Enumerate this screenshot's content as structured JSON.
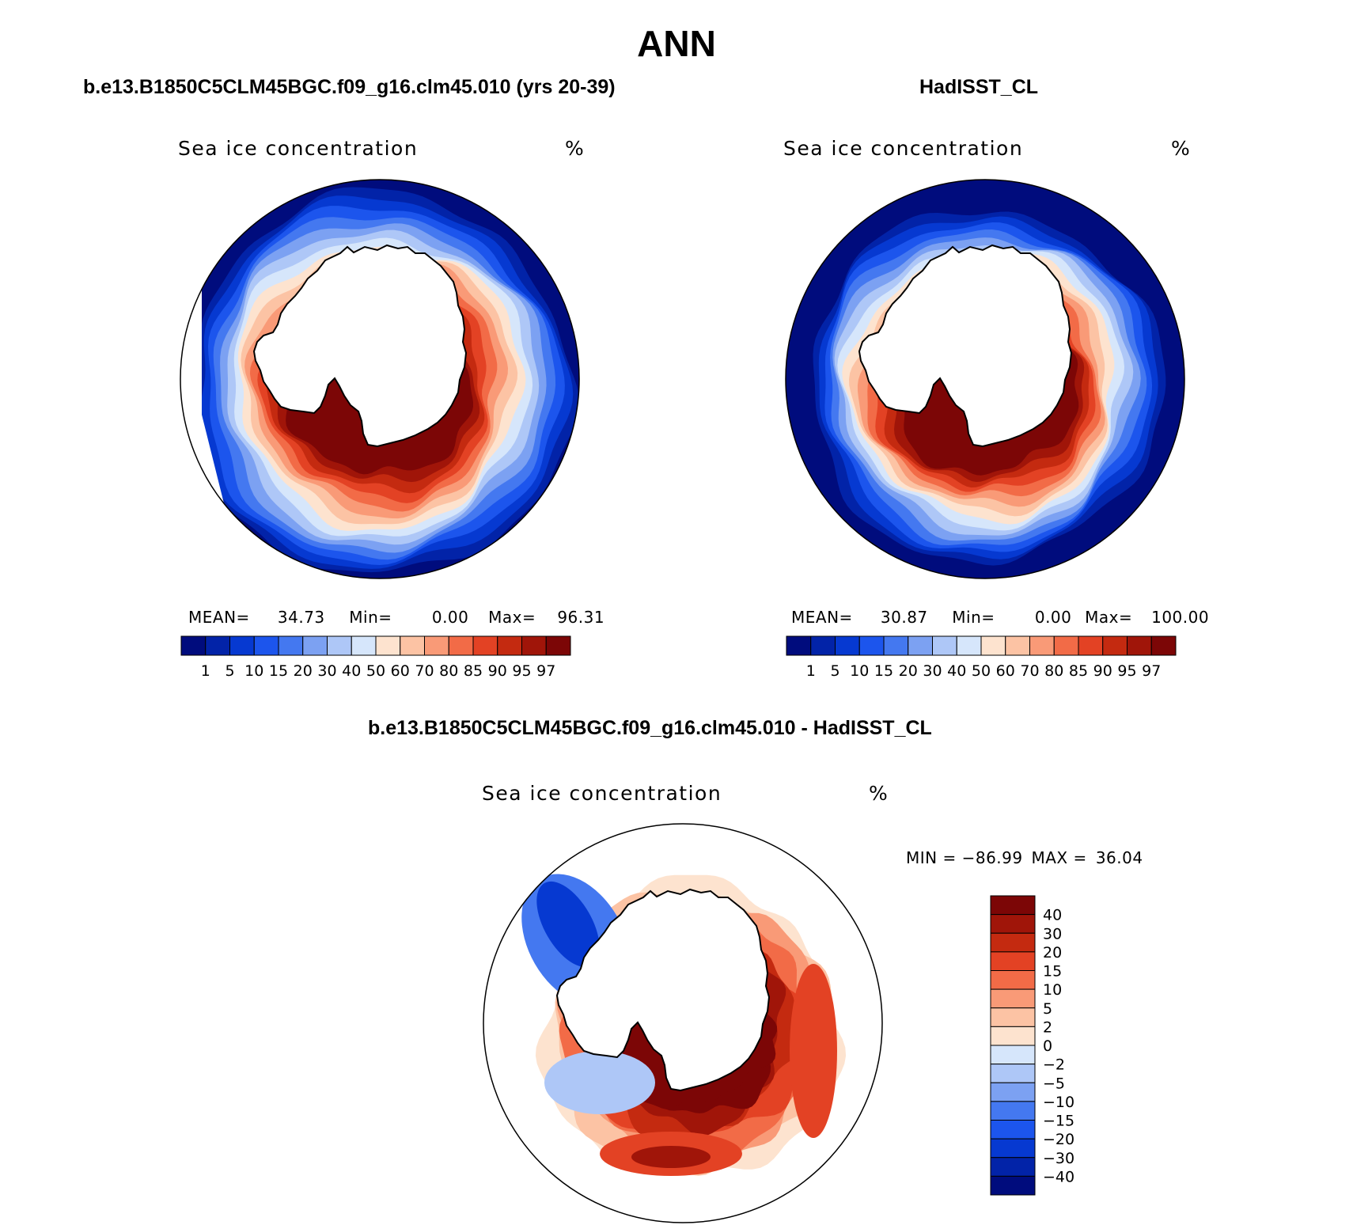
{
  "figure": {
    "title": "ANN"
  },
  "chart_data": [
    {
      "type": "heatmap",
      "panel": "left",
      "case_title": "b.e13.B1850C5CLM45BGC.f09_g16.clm45.010 (yrs 20-39)",
      "variable": "Sea ice concentration",
      "units": "%",
      "stats": {
        "mean_label": "MEAN=",
        "mean": "34.73",
        "min_label": "Min=",
        "min": "0.00",
        "max_label": "Max=",
        "max": "96.31"
      },
      "levels": [
        "1",
        "5",
        "10",
        "15",
        "20",
        "30",
        "40",
        "50",
        "60",
        "70",
        "80",
        "85",
        "90",
        "95",
        "97"
      ],
      "colors": [
        "#000c7d",
        "#0223a8",
        "#0639d1",
        "#1c55ed",
        "#4478f0",
        "#7ca1f2",
        "#aec7f7",
        "#d6e6fb",
        "#fde3cf",
        "#fcc3a4",
        "#f99a77",
        "#f26b47",
        "#e34224",
        "#c42a10",
        "#a01509",
        "#7c0606"
      ],
      "polar_projection": "south polar stereographic",
      "ice_edge_noise": 0.35,
      "ice_band_center_frac": 0.52
    },
    {
      "type": "heatmap",
      "panel": "right",
      "case_title": "HadISST_CL",
      "variable": "Sea ice concentration",
      "units": "%",
      "stats": {
        "mean_label": "MEAN=",
        "mean": "30.87",
        "min_label": "Min=",
        "min": "0.00",
        "max_label": "Max=",
        "max": "100.00"
      },
      "levels": [
        "1",
        "5",
        "10",
        "15",
        "20",
        "30",
        "40",
        "50",
        "60",
        "70",
        "80",
        "85",
        "90",
        "95",
        "97"
      ],
      "colors": [
        "#000c7d",
        "#0223a8",
        "#0639d1",
        "#1c55ed",
        "#4478f0",
        "#7ca1f2",
        "#aec7f7",
        "#d6e6fb",
        "#fde3cf",
        "#fcc3a4",
        "#f99a77",
        "#f26b47",
        "#e34224",
        "#c42a10",
        "#a01509",
        "#7c0606"
      ],
      "polar_projection": "south polar stereographic"
    },
    {
      "type": "heatmap",
      "panel": "difference",
      "case_title": "b.e13.B1850C5CLM45BGC.f09_g16.clm45.010 - HadISST_CL",
      "variable": "Sea ice concentration",
      "units": "%",
      "stats": {
        "min_label": "MIN =",
        "min": "−86.99",
        "max_label": "MAX =",
        "max": "36.04"
      },
      "levels_top_down": [
        "40",
        "30",
        "20",
        "15",
        "10",
        "5",
        "2",
        "0",
        "−2",
        "−5",
        "−10",
        "−15",
        "−20",
        "−30",
        "−40"
      ],
      "colors_top_down": [
        "#7c0606",
        "#a01509",
        "#c42a10",
        "#e34224",
        "#f26b47",
        "#f99a77",
        "#fcc3a4",
        "#fde3cf",
        "#d6e6fb",
        "#aec7f7",
        "#7ca1f2",
        "#4478f0",
        "#1c55ed",
        "#0639d1",
        "#0223a8",
        "#000c7d"
      ],
      "polar_projection": "south polar stereographic"
    }
  ]
}
